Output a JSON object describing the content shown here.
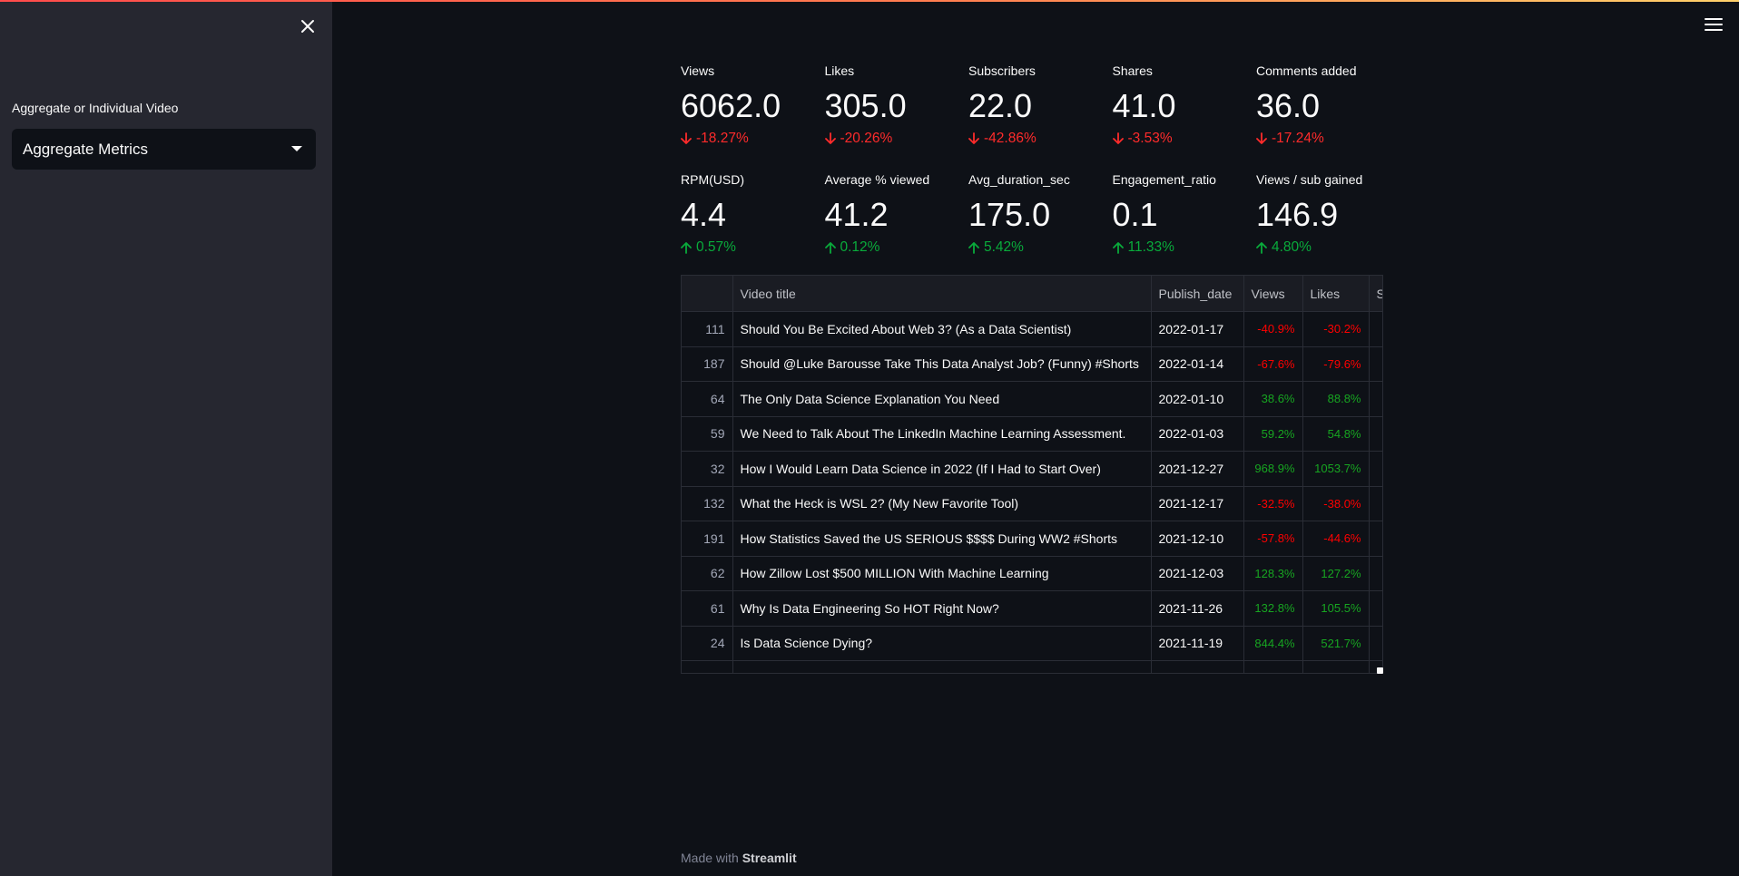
{
  "sidebar": {
    "select_label": "Aggregate or Individual Video",
    "select_value": "Aggregate Metrics"
  },
  "colors": {
    "background": "#0e1117",
    "sidebar": "#262730",
    "negative": "#ff2b2b",
    "positive": "#09ab3b",
    "accent_gradient": [
      "#ff4b4b",
      "#ffd16a"
    ]
  },
  "icons": {
    "close": "close-icon",
    "menu": "hamburger-menu-icon",
    "dropdown": "chevron-down-icon",
    "delta_down": "arrow-down-icon",
    "delta_up": "arrow-up-icon"
  },
  "metrics": [
    [
      {
        "label": "Views",
        "value": "6062.0",
        "delta": "-18.27%",
        "direction": "down"
      },
      {
        "label": "Likes",
        "value": "305.0",
        "delta": "-20.26%",
        "direction": "down"
      },
      {
        "label": "Subscribers",
        "value": "22.0",
        "delta": "-42.86%",
        "direction": "down"
      },
      {
        "label": "Shares",
        "value": "41.0",
        "delta": "-3.53%",
        "direction": "down"
      },
      {
        "label": "Comments added",
        "value": "36.0",
        "delta": "-17.24%",
        "direction": "down"
      }
    ],
    [
      {
        "label": "RPM(USD)",
        "value": "4.4",
        "delta": "0.57%",
        "direction": "up"
      },
      {
        "label": "Average % viewed",
        "value": "41.2",
        "delta": "0.12%",
        "direction": "up"
      },
      {
        "label": "Avg_duration_sec",
        "value": "175.0",
        "delta": "5.42%",
        "direction": "up"
      },
      {
        "label": "Engagement_ratio",
        "value": "0.1",
        "delta": "11.33%",
        "direction": "up"
      },
      {
        "label": "Views / sub gained",
        "value": "146.9",
        "delta": "4.80%",
        "direction": "up"
      }
    ]
  ],
  "table": {
    "columns": [
      "",
      "Video title",
      "Publish_date",
      "Views",
      "Likes",
      "S"
    ],
    "rows": [
      {
        "index": "111",
        "title": "Should You Be Excited About Web 3? (As a Data Scientist)",
        "date": "2022-01-17",
        "views": "-40.9%",
        "likes": "-30.2%",
        "views_sign": "neg",
        "likes_sign": "neg"
      },
      {
        "index": "187",
        "title": "Should  @Luke Barousse Take This Data Analyst Job? (Funny) #Shorts",
        "date": "2022-01-14",
        "views": "-67.6%",
        "likes": "-79.6%",
        "views_sign": "neg",
        "likes_sign": "neg"
      },
      {
        "index": "64",
        "title": "The Only Data Science Explanation You Need",
        "date": "2022-01-10",
        "views": "38.6%",
        "likes": "88.8%",
        "views_sign": "pos",
        "likes_sign": "pos"
      },
      {
        "index": "59",
        "title": "We Need to Talk About The LinkedIn Machine Learning Assessment.",
        "date": "2022-01-03",
        "views": "59.2%",
        "likes": "54.8%",
        "views_sign": "pos",
        "likes_sign": "pos"
      },
      {
        "index": "32",
        "title": "How I Would Learn Data Science in 2022 (If I Had to Start Over)",
        "date": "2021-12-27",
        "views": "968.9%",
        "likes": "1053.7%",
        "views_sign": "pos",
        "likes_sign": "pos"
      },
      {
        "index": "132",
        "title": "What the Heck is WSL 2? (My New Favorite Tool)",
        "date": "2021-12-17",
        "views": "-32.5%",
        "likes": "-38.0%",
        "views_sign": "neg",
        "likes_sign": "neg"
      },
      {
        "index": "191",
        "title": "How Statistics Saved the US SERIOUS $$$$ During WW2 #Shorts",
        "date": "2021-12-10",
        "views": "-57.8%",
        "likes": "-44.6%",
        "views_sign": "neg",
        "likes_sign": "neg"
      },
      {
        "index": "62",
        "title": "How Zillow Lost $500 MILLION With Machine Learning",
        "date": "2021-12-03",
        "views": "128.3%",
        "likes": "127.2%",
        "views_sign": "pos",
        "likes_sign": "pos"
      },
      {
        "index": "61",
        "title": "Why Is Data Engineering So HOT Right Now?",
        "date": "2021-11-26",
        "views": "132.8%",
        "likes": "105.5%",
        "views_sign": "pos",
        "likes_sign": "pos"
      },
      {
        "index": "24",
        "title": "Is Data Science Dying?",
        "date": "2021-11-19",
        "views": "844.4%",
        "likes": "521.7%",
        "views_sign": "pos",
        "likes_sign": "pos"
      },
      {
        "index": "",
        "title": "",
        "date": "",
        "views": "",
        "likes": "",
        "views_sign": "pos",
        "likes_sign": "pos"
      }
    ]
  },
  "footer": {
    "prefix": "Made with ",
    "brand": "Streamlit"
  }
}
